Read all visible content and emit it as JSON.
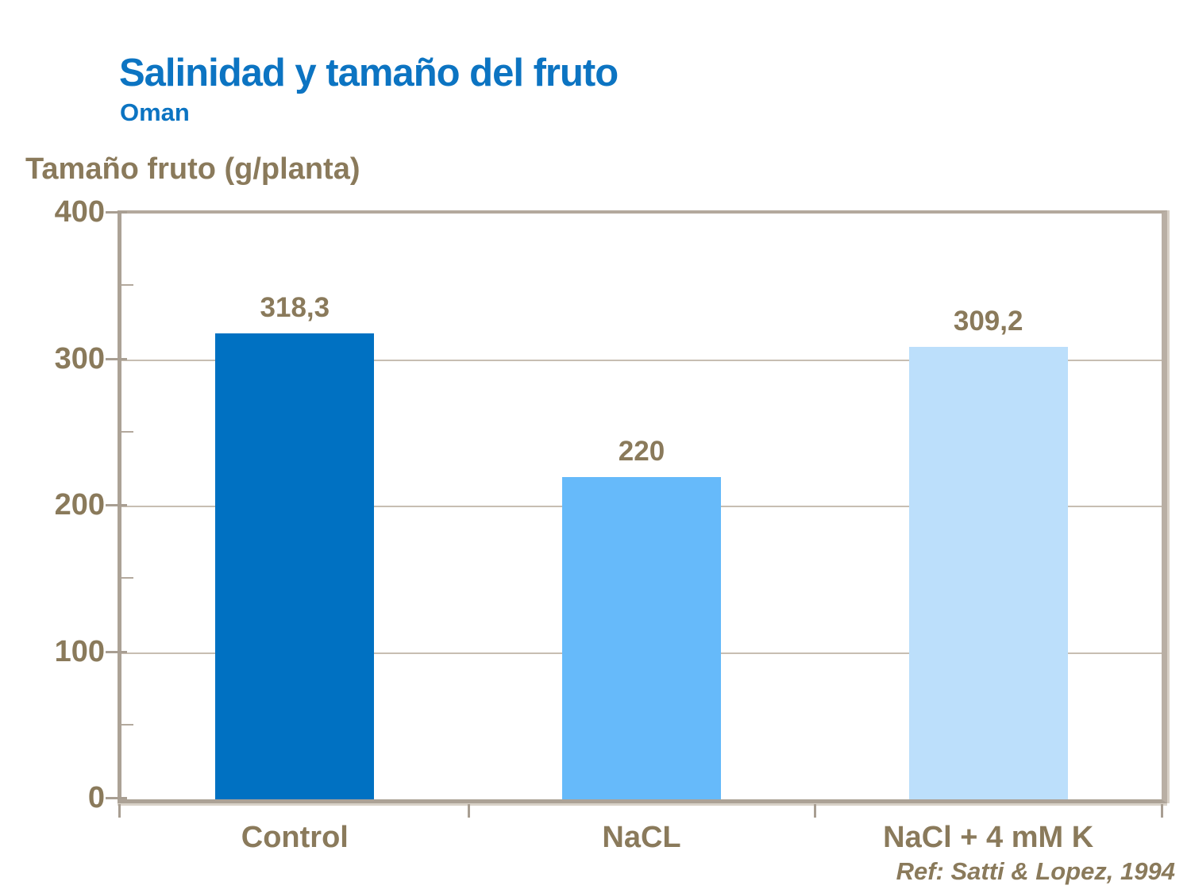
{
  "slide": {
    "title": "Salinidad y tamaño del fruto",
    "subtitle": "Oman",
    "y_axis_title": "Tamaño fruto (g/planta)",
    "reference": "Ref: Satti & Lopez, 1994"
  },
  "colors": {
    "title_blue": "#0c74c2",
    "text_brown": "#8a7a5b",
    "axis_line_tan": "#aca296",
    "gridline_tan": "#c7beb2",
    "bar_dark_blue": "#0071c2",
    "bar_medium_blue": "#66bafa",
    "bar_light_blue": "#bcdffb"
  },
  "chart_data": {
    "type": "bar",
    "title": "Salinidad y tamaño del fruto",
    "subtitle": "Oman",
    "xlabel": "",
    "ylabel": "Tamaño fruto (g/planta)",
    "categories": [
      "Control",
      "NaCL",
      "NaCl + 4 mM K"
    ],
    "values": [
      318.3,
      220,
      309.2
    ],
    "value_labels": [
      "318,3",
      "220",
      "309,2"
    ],
    "bar_colors": [
      "#0071c2",
      "#66bafa",
      "#bcdffb"
    ],
    "ylim": [
      0,
      400
    ],
    "yticks": [
      0,
      100,
      200,
      300,
      400
    ],
    "ytick_labels": [
      "0",
      "100",
      "200",
      "300",
      "400"
    ],
    "minor_yticks": [
      50,
      150,
      250,
      350
    ],
    "grid": true,
    "legend": false,
    "annotation": "Ref: Satti & Lopez, 1994"
  }
}
